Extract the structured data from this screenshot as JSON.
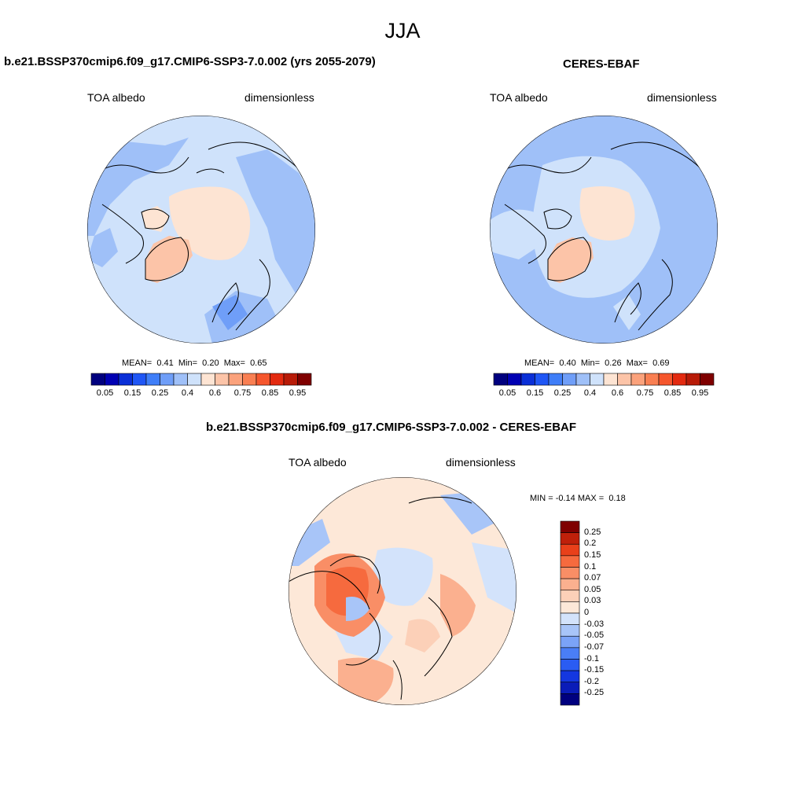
{
  "figure": {
    "title": "JJA"
  },
  "panels": [
    {
      "title": "b.e21.BSSP370cmip6.f09_g17.CMIP6-SSP3-7.0.002 (yrs 2055-2079)",
      "left_label": "TOA albedo",
      "right_label": "dimensionless",
      "stats": {
        "mean_label": "MEAN=",
        "mean": "0.41",
        "min_label": "Min=",
        "min": "0.20",
        "max_label": "Max=",
        "max": "0.65"
      }
    },
    {
      "title": "CERES-EBAF",
      "left_label": "TOA albedo",
      "right_label": "dimensionless",
      "stats": {
        "mean_label": "MEAN=",
        "mean": "0.40",
        "min_label": "Min=",
        "min": "0.26",
        "max_label": "Max=",
        "max": "0.69"
      }
    },
    {
      "title": "b.e21.BSSP370cmip6.f09_g17.CMIP6-SSP3-7.0.002 - CERES-EBAF",
      "left_label": "TOA albedo",
      "right_label": "dimensionless",
      "minmax": {
        "min_label": "MIN =",
        "min": "-0.14",
        "max_label": "MAX =",
        "max": "0.18"
      }
    }
  ],
  "colorbar_abs": {
    "colors": [
      "#00007f",
      "#0000b3",
      "#0a2fd7",
      "#1f56f5",
      "#3f7ef8",
      "#6f9ef8",
      "#9fc0f8",
      "#cfe2fb",
      "#fde4d3",
      "#fcc4a8",
      "#fba27c",
      "#f97f52",
      "#f5562d",
      "#e32a10",
      "#b81b08",
      "#7f0000"
    ],
    "labels": [
      "0.05",
      "0.15",
      "0.25",
      "0.4",
      "0.6",
      "0.75",
      "0.85",
      "0.95"
    ]
  },
  "colorbar_diff": {
    "colors": [
      "#00007f",
      "#0a1cb8",
      "#1437e0",
      "#2a5cf3",
      "#4a7ef6",
      "#7ba3f7",
      "#a8c5f8",
      "#d3e3fb",
      "#fde8d8",
      "#fcd0b8",
      "#fbb08f",
      "#f98e66",
      "#f66a3e",
      "#e9401a",
      "#bf200a",
      "#7f0000"
    ],
    "labels": [
      "0.25",
      "0.2",
      "0.15",
      "0.1",
      "0.07",
      "0.05",
      "0.03",
      "0",
      "-0.03",
      "-0.05",
      "-0.07",
      "-0.1",
      "-0.15",
      "-0.2",
      "-0.25"
    ]
  }
}
